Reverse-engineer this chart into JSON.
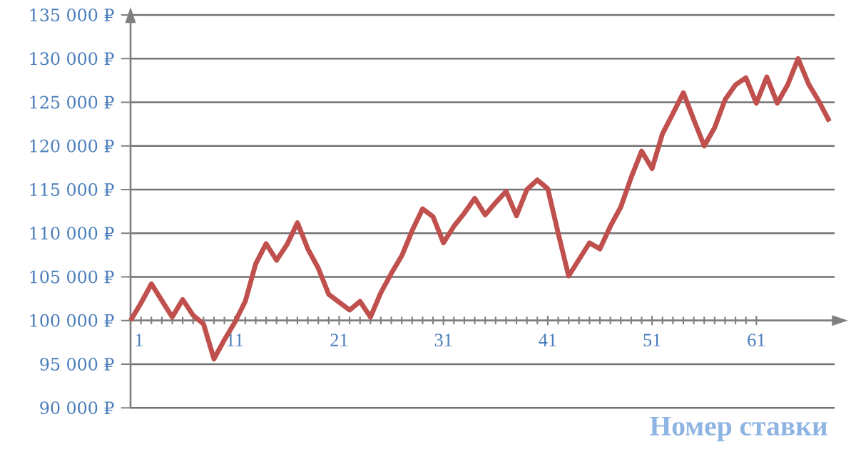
{
  "chart_data": {
    "type": "line",
    "xlabel": "Номер ставки",
    "x": [
      1,
      2,
      3,
      4,
      5,
      6,
      7,
      8,
      9,
      10,
      11,
      12,
      13,
      14,
      15,
      16,
      17,
      18,
      19,
      20,
      21,
      22,
      23,
      24,
      25,
      26,
      27,
      28,
      29,
      30,
      31,
      32,
      33,
      34,
      35,
      36,
      37,
      38,
      39,
      40,
      41,
      42,
      43,
      44,
      45,
      46,
      47,
      48,
      49,
      50,
      51,
      52,
      53,
      54,
      55,
      56,
      57,
      58,
      59,
      60,
      61,
      62,
      63,
      64,
      65,
      66,
      67,
      68
    ],
    "series": [
      {
        "color": "#c0504d",
        "values": [
          100000,
          102000,
          104200,
          102300,
          100400,
          102400,
          100600,
          99600,
          95600,
          97800,
          99800,
          102200,
          106500,
          108800,
          106900,
          108700,
          111200,
          108200,
          106000,
          103000,
          102100,
          101200,
          102200,
          100400,
          103200,
          105400,
          107400,
          110300,
          112800,
          111900,
          108900,
          110800,
          112300,
          114000,
          112100,
          113500,
          114800,
          112000,
          115000,
          116100,
          115100,
          110000,
          105100,
          107000,
          108900,
          108200,
          110800,
          113000,
          116400,
          119400,
          117400,
          121400,
          123700,
          126100,
          123000,
          120000,
          122100,
          125300,
          127000,
          127800,
          124900,
          127900,
          124900,
          127000,
          130000,
          127100,
          125100,
          122800
        ]
      }
    ],
    "xlim": [
      1,
      68.5
    ],
    "xticks": [
      1,
      11,
      21,
      31,
      41,
      51,
      61
    ],
    "ylim": [
      90000,
      135000
    ],
    "yticks": [
      {
        "value": 90000,
        "label": "90 000 ₽"
      },
      {
        "value": 95000,
        "label": "95 000 ₽"
      },
      {
        "value": 100000,
        "label": "100 000 ₽"
      },
      {
        "value": 105000,
        "label": "105 000 ₽"
      },
      {
        "value": 110000,
        "label": "110 000 ₽"
      },
      {
        "value": 115000,
        "label": "115 000 ₽"
      },
      {
        "value": 120000,
        "label": "120 000 ₽"
      },
      {
        "value": 125000,
        "label": "125 000 ₽"
      },
      {
        "value": 130000,
        "label": "130 000 ₽"
      },
      {
        "value": 135000,
        "label": "135 000 ₽"
      }
    ],
    "grid": "y"
  }
}
